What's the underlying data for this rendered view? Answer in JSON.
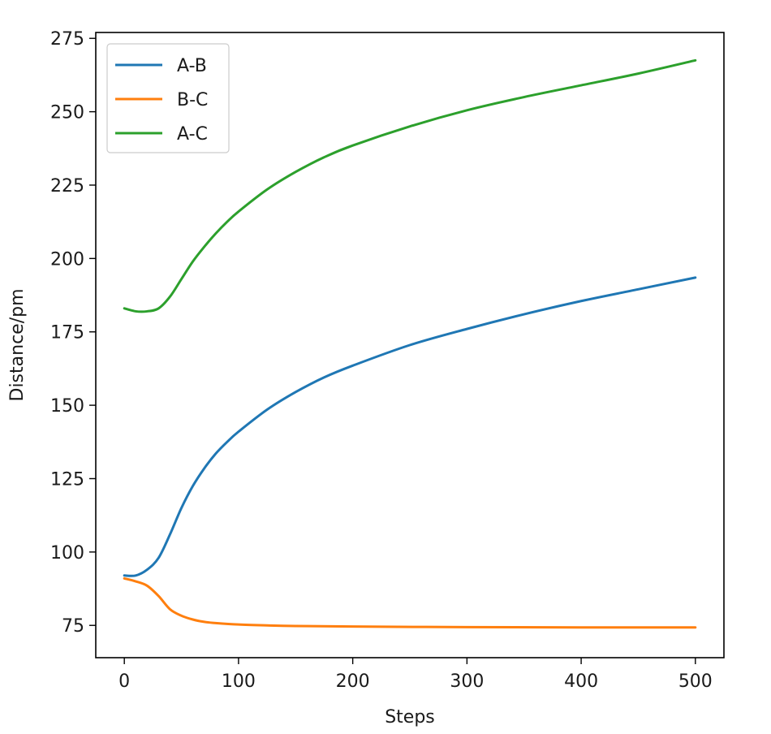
{
  "chart_data": {
    "type": "line",
    "title": "",
    "xlabel": "Steps",
    "ylabel": "Distance/pm",
    "xlim": [
      -25,
      525
    ],
    "ylim": [
      64,
      277
    ],
    "xticks": [
      0,
      100,
      200,
      300,
      400,
      500
    ],
    "yticks": [
      75,
      100,
      125,
      150,
      175,
      200,
      225,
      250,
      275
    ],
    "grid": false,
    "legend_position": "top-left",
    "series": [
      {
        "name": "A-B",
        "color": "#1f77b4",
        "x": [
          0,
          10,
          20,
          30,
          40,
          50,
          60,
          70,
          80,
          90,
          100,
          125,
          150,
          175,
          200,
          250,
          300,
          350,
          400,
          450,
          500
        ],
        "values": [
          92,
          92,
          94,
          98,
          106,
          115,
          122.5,
          128.5,
          133.5,
          137.5,
          141,
          148.5,
          154.5,
          159.5,
          163.5,
          170.5,
          176,
          181,
          185.5,
          189.5,
          193.5
        ]
      },
      {
        "name": "B-C",
        "color": "#ff7f0e",
        "x": [
          0,
          10,
          20,
          30,
          40,
          50,
          60,
          70,
          80,
          100,
          125,
          150,
          200,
          300,
          400,
          500
        ],
        "values": [
          91,
          90,
          88.5,
          85,
          80.5,
          78.3,
          77,
          76.2,
          75.8,
          75.3,
          75,
          74.8,
          74.6,
          74.4,
          74.3,
          74.3
        ]
      },
      {
        "name": "A-C",
        "color": "#2ca02c",
        "x": [
          0,
          10,
          20,
          30,
          40,
          50,
          60,
          70,
          80,
          90,
          100,
          125,
          150,
          175,
          200,
          250,
          300,
          350,
          400,
          450,
          500
        ],
        "values": [
          183,
          182,
          182,
          183,
          187,
          193,
          199,
          204,
          208.5,
          212.5,
          216,
          223.5,
          229.5,
          234.5,
          238.5,
          245,
          250.5,
          255,
          259,
          263,
          267.5
        ]
      }
    ]
  }
}
